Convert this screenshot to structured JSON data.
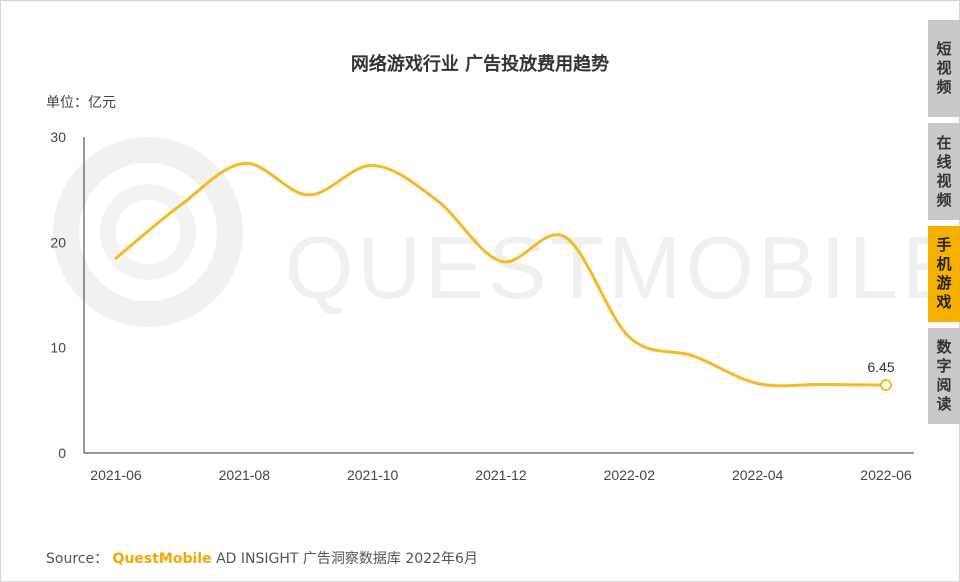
{
  "title": "网络游戏行业 广告投放费用趋势",
  "unit_label": "单位：亿元",
  "watermark": "QUESTMOBILE",
  "source": {
    "prefix": "Source：",
    "brand": "QuestMobile",
    "product": "AD INSIGHT",
    "rest": "广告洞察数据库 2022年6月"
  },
  "side_tabs": [
    {
      "label": "短视频",
      "active": false
    },
    {
      "label": "在线视频",
      "active": false
    },
    {
      "label": "手机游戏",
      "active": true
    },
    {
      "label": "数字阅读",
      "active": false
    }
  ],
  "colors": {
    "line": "#f7b924",
    "active_tab": "#f5b000",
    "inactive_tab": "#c9c9c9",
    "brand": "#f5a800"
  },
  "chart_data": {
    "type": "line",
    "title": "网络游戏行业 广告投放费用趋势",
    "ylabel": "单位：亿元",
    "xlabel": "",
    "ylim": [
      0,
      30
    ],
    "yticks": [
      0,
      10,
      20,
      30
    ],
    "grid": false,
    "x": [
      "2021-06",
      "2021-07",
      "2021-08",
      "2021-09",
      "2021-10",
      "2021-11",
      "2021-12",
      "2022-01",
      "2022-02",
      "2022-03",
      "2022-04",
      "2022-05",
      "2022-06"
    ],
    "xtick_labels": [
      "2021-06",
      "2021-08",
      "2021-10",
      "2021-12",
      "2022-02",
      "2022-04",
      "2022-06"
    ],
    "series": [
      {
        "values": [
          18.5,
          23.5,
          27.5,
          24.5,
          27.3,
          24.0,
          18.2,
          20.5,
          11.0,
          9.2,
          6.6,
          6.5,
          6.45
        ]
      }
    ],
    "annotations": [
      {
        "x": "2022-06",
        "text": "6.45"
      }
    ]
  }
}
